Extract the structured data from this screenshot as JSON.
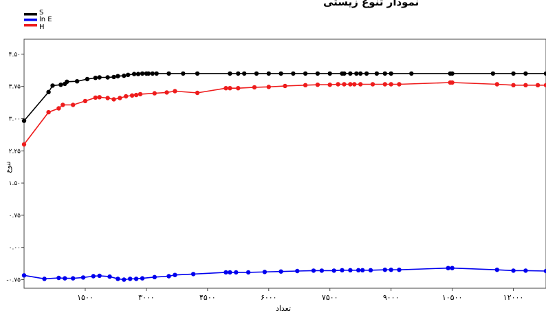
{
  "chart_data": {
    "type": "line",
    "title": "نمودار تنوع زیستی",
    "xlabel": "تعداد",
    "ylabel": "تنوع",
    "xlim": [
      0,
      12800
    ],
    "ylim": [
      -0.95,
      4.85
    ],
    "x_ticks": [
      1500,
      3000,
      4500,
      6000,
      7500,
      9000,
      10500,
      12000
    ],
    "x_tick_labels": [
      "۱۵۰۰",
      "۳۰۰۰",
      "۴۵۰۰",
      "۶۰۰۰",
      "۷۵۰۰",
      "۹۰۰۰",
      "۱۰۵۰۰",
      "۱۲۰۰۰"
    ],
    "y_ticks": [
      4.5,
      3.75,
      3.0,
      2.25,
      1.5,
      0.75,
      0.0,
      -0.75
    ],
    "y_tick_labels": [
      "۴.۵۰",
      "۳.۷۵",
      "۳.۰۰",
      "۲.۲۵",
      "۱.۵۰",
      "۰.۷۵",
      "۰.۰۰",
      "-۰.۷۵"
    ],
    "grid": false,
    "legend_position": "top-left",
    "legend_items": [
      {
        "label": "S",
        "color": "#000000"
      },
      {
        "label": "ln E",
        "color": "#0000ee"
      },
      {
        "label": "H",
        "color": "#ee1c1c"
      }
    ],
    "series": [
      {
        "legend_ref": 0,
        "color": "#000000",
        "points": [
          [
            0,
            2.95
          ],
          [
            600,
            3.62
          ],
          [
            700,
            3.77
          ],
          [
            900,
            3.79
          ],
          [
            1000,
            3.81
          ],
          [
            1050,
            3.86
          ],
          [
            1300,
            3.87
          ],
          [
            1550,
            3.92
          ],
          [
            1750,
            3.95
          ],
          [
            1850,
            3.96
          ],
          [
            2050,
            3.96
          ],
          [
            2200,
            3.97
          ],
          [
            2300,
            3.99
          ],
          [
            2450,
            4.0
          ],
          [
            2550,
            4.02
          ],
          [
            2700,
            4.04
          ],
          [
            2800,
            4.04
          ],
          [
            2900,
            4.05
          ],
          [
            3000,
            4.05
          ],
          [
            3050,
            4.05
          ],
          [
            3150,
            4.05
          ],
          [
            3250,
            4.05
          ],
          [
            3550,
            4.05
          ],
          [
            3900,
            4.05
          ],
          [
            4250,
            4.05
          ],
          [
            5050,
            4.05
          ],
          [
            5250,
            4.05
          ],
          [
            5400,
            4.05
          ],
          [
            5700,
            4.05
          ],
          [
            6000,
            4.05
          ],
          [
            6300,
            4.05
          ],
          [
            6600,
            4.05
          ],
          [
            6900,
            4.05
          ],
          [
            7200,
            4.05
          ],
          [
            7500,
            4.05
          ],
          [
            7800,
            4.05
          ],
          [
            7850,
            4.05
          ],
          [
            8000,
            4.05
          ],
          [
            8150,
            4.05
          ],
          [
            8250,
            4.05
          ],
          [
            8400,
            4.05
          ],
          [
            8650,
            4.05
          ],
          [
            8850,
            4.05
          ],
          [
            9000,
            4.05
          ],
          [
            9500,
            4.05
          ],
          [
            10450,
            4.05
          ],
          [
            10500,
            4.05
          ],
          [
            11500,
            4.05
          ],
          [
            12000,
            4.05
          ],
          [
            12300,
            4.05
          ],
          [
            12800,
            4.05
          ]
        ]
      },
      {
        "legend_ref": 2,
        "color": "#ee1c1c",
        "points": [
          [
            0,
            2.4
          ],
          [
            600,
            3.15
          ],
          [
            850,
            3.24
          ],
          [
            950,
            3.32
          ],
          [
            1200,
            3.32
          ],
          [
            1500,
            3.41
          ],
          [
            1750,
            3.49
          ],
          [
            1850,
            3.5
          ],
          [
            2050,
            3.48
          ],
          [
            2200,
            3.45
          ],
          [
            2350,
            3.48
          ],
          [
            2500,
            3.52
          ],
          [
            2650,
            3.54
          ],
          [
            2750,
            3.55
          ],
          [
            2850,
            3.57
          ],
          [
            3200,
            3.59
          ],
          [
            3500,
            3.61
          ],
          [
            3700,
            3.64
          ],
          [
            4250,
            3.6
          ],
          [
            4950,
            3.71
          ],
          [
            5050,
            3.71
          ],
          [
            5250,
            3.71
          ],
          [
            5650,
            3.73
          ],
          [
            6000,
            3.74
          ],
          [
            6400,
            3.76
          ],
          [
            6900,
            3.78
          ],
          [
            7200,
            3.79
          ],
          [
            7500,
            3.79
          ],
          [
            7700,
            3.8
          ],
          [
            7850,
            3.8
          ],
          [
            8000,
            3.8
          ],
          [
            8100,
            3.8
          ],
          [
            8250,
            3.8
          ],
          [
            8550,
            3.8
          ],
          [
            8850,
            3.8
          ],
          [
            9000,
            3.8
          ],
          [
            9200,
            3.8
          ],
          [
            10450,
            3.84
          ],
          [
            10500,
            3.84
          ],
          [
            11600,
            3.8
          ],
          [
            12000,
            3.78
          ],
          [
            12300,
            3.78
          ],
          [
            12600,
            3.78
          ],
          [
            12800,
            3.78
          ]
        ]
      },
      {
        "legend_ref": 1,
        "color": "#0000ee",
        "points": [
          [
            0,
            -0.65
          ],
          [
            500,
            -0.73
          ],
          [
            850,
            -0.71
          ],
          [
            1000,
            -0.72
          ],
          [
            1200,
            -0.72
          ],
          [
            1450,
            -0.7
          ],
          [
            1700,
            -0.67
          ],
          [
            1850,
            -0.66
          ],
          [
            2100,
            -0.68
          ],
          [
            2300,
            -0.73
          ],
          [
            2450,
            -0.75
          ],
          [
            2600,
            -0.73
          ],
          [
            2750,
            -0.73
          ],
          [
            2900,
            -0.72
          ],
          [
            3200,
            -0.69
          ],
          [
            3550,
            -0.67
          ],
          [
            3700,
            -0.64
          ],
          [
            4150,
            -0.62
          ],
          [
            4950,
            -0.58
          ],
          [
            5050,
            -0.58
          ],
          [
            5200,
            -0.58
          ],
          [
            5500,
            -0.58
          ],
          [
            5900,
            -0.57
          ],
          [
            6300,
            -0.56
          ],
          [
            6700,
            -0.55
          ],
          [
            7100,
            -0.54
          ],
          [
            7300,
            -0.54
          ],
          [
            7600,
            -0.54
          ],
          [
            7800,
            -0.53
          ],
          [
            8000,
            -0.53
          ],
          [
            8200,
            -0.53
          ],
          [
            8300,
            -0.53
          ],
          [
            8500,
            -0.53
          ],
          [
            8850,
            -0.52
          ],
          [
            9000,
            -0.52
          ],
          [
            9200,
            -0.52
          ],
          [
            10400,
            -0.48
          ],
          [
            10500,
            -0.48
          ],
          [
            11600,
            -0.52
          ],
          [
            12000,
            -0.54
          ],
          [
            12300,
            -0.54
          ],
          [
            12800,
            -0.55
          ]
        ]
      }
    ]
  }
}
